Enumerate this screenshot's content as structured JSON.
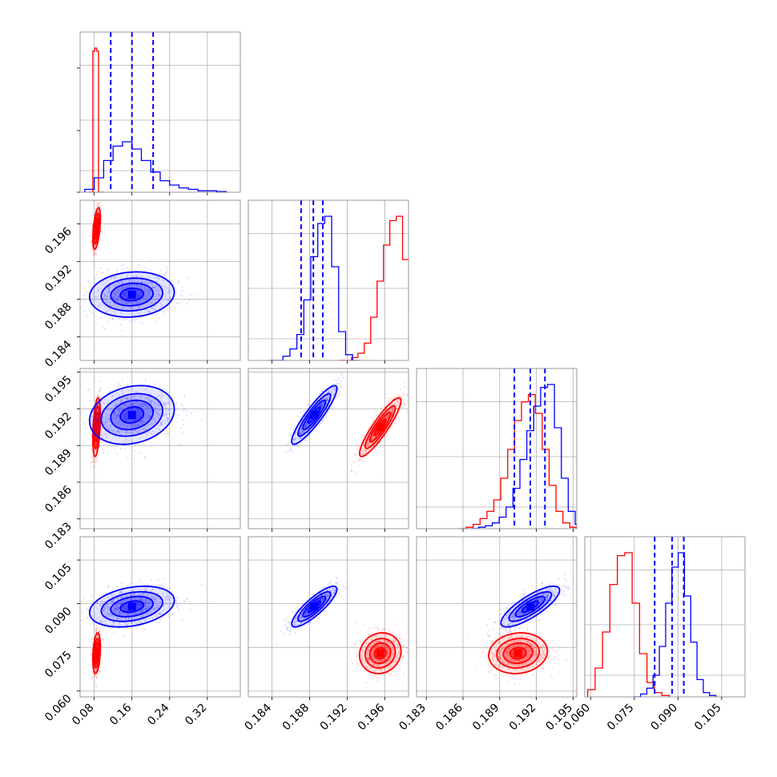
{
  "chart_data": {
    "type": "corner",
    "grid": true,
    "parameters": [
      {
        "range": [
          0.05,
          0.39
        ],
        "ticks": [
          0.08,
          0.16,
          0.24,
          0.32
        ],
        "tick_labels": [
          "0.08",
          "0.16",
          "0.24",
          "0.32"
        ]
      },
      {
        "range": [
          0.1815,
          0.1985
        ],
        "ticks": [
          0.184,
          0.188,
          0.192,
          0.196
        ],
        "tick_labels": [
          "0.184",
          "0.188",
          "0.192",
          "0.196"
        ]
      },
      {
        "range": [
          0.1822,
          0.1953
        ],
        "ticks": [
          0.183,
          0.186,
          0.189,
          0.192,
          0.195
        ],
        "tick_labels": [
          "0.183",
          "0.186",
          "0.189",
          "0.192",
          "0.195"
        ]
      },
      {
        "range": [
          0.058,
          0.113
        ],
        "ticks": [
          0.06,
          0.075,
          0.09,
          0.105
        ],
        "tick_labels": [
          "0.060",
          "0.075",
          "0.090",
          "0.105"
        ]
      }
    ],
    "series": [
      {
        "color": "#ff0000",
        "means": [
          0.085,
          0.1955,
          0.1905,
          0.073
        ],
        "stds": [
          0.004,
          0.0011,
          0.0012,
          0.0035
        ],
        "correlations": [
          [
            0,
            1,
            0.5
          ],
          [
            0,
            2,
            0.4
          ],
          [
            0,
            3,
            0.3
          ],
          [
            1,
            2,
            0.9
          ],
          [
            1,
            3,
            0.1
          ],
          [
            2,
            3,
            0.1
          ]
        ],
        "histograms": [
          [
            0,
            0,
            0.98,
            1.0,
            0.98,
            0,
            0,
            0
          ],
          [
            0,
            0,
            0.02,
            0.05,
            0.12,
            0.3,
            0.55,
            0.8,
            0.97,
            1.0,
            0.7,
            0.35,
            0.08
          ],
          [
            0,
            0.01,
            0.03,
            0.07,
            0.12,
            0.2,
            0.35,
            0.55,
            0.75,
            0.88,
            0.93,
            0.8,
            0.55,
            0.3,
            0.12,
            0.04,
            0.01
          ],
          [
            0.05,
            0.2,
            0.45,
            0.78,
            0.98,
            1.0,
            0.65,
            0.3,
            0.1,
            0.03,
            0.01
          ]
        ],
        "quantile_lines": []
      },
      {
        "color": "#0000ff",
        "means": [
          0.16,
          0.1885,
          0.1915,
          0.089
        ],
        "stds": [
          0.045,
          0.0012,
          0.0012,
          0.0035
        ],
        "correlations": [
          [
            0,
            1,
            0.1
          ],
          [
            0,
            2,
            0.2
          ],
          [
            0,
            3,
            0.3
          ],
          [
            1,
            2,
            0.9
          ],
          [
            1,
            3,
            0.85
          ],
          [
            2,
            3,
            0.8
          ]
        ],
        "histograms": [
          [
            0.02,
            0.1,
            0.22,
            0.32,
            0.35,
            0.3,
            0.22,
            0.14,
            0.08,
            0.05,
            0.03,
            0.02,
            0.01,
            0.01,
            0.005
          ],
          [
            0,
            0,
            0.03,
            0.08,
            0.18,
            0.42,
            0.72,
            0.95,
            1.0,
            0.65,
            0.2,
            0.04,
            0
          ],
          [
            0,
            0.01,
            0.02,
            0.04,
            0.08,
            0.15,
            0.28,
            0.48,
            0.68,
            0.85,
            0.98,
            1.0,
            0.7,
            0.35,
            0.12,
            0.03,
            0.01
          ],
          [
            0,
            0.02,
            0.06,
            0.15,
            0.35,
            0.65,
            0.9,
            1.0,
            0.7,
            0.38,
            0.12,
            0.03,
            0.01
          ]
        ],
        "quantile_lines": [
          [
            0.115,
            0.16,
            0.205
          ],
          [
            0.1871,
            0.1884,
            0.1894
          ],
          [
            0.1902,
            0.1915,
            0.1927
          ],
          [
            0.082,
            0.088,
            0.092
          ]
        ]
      }
    ]
  }
}
